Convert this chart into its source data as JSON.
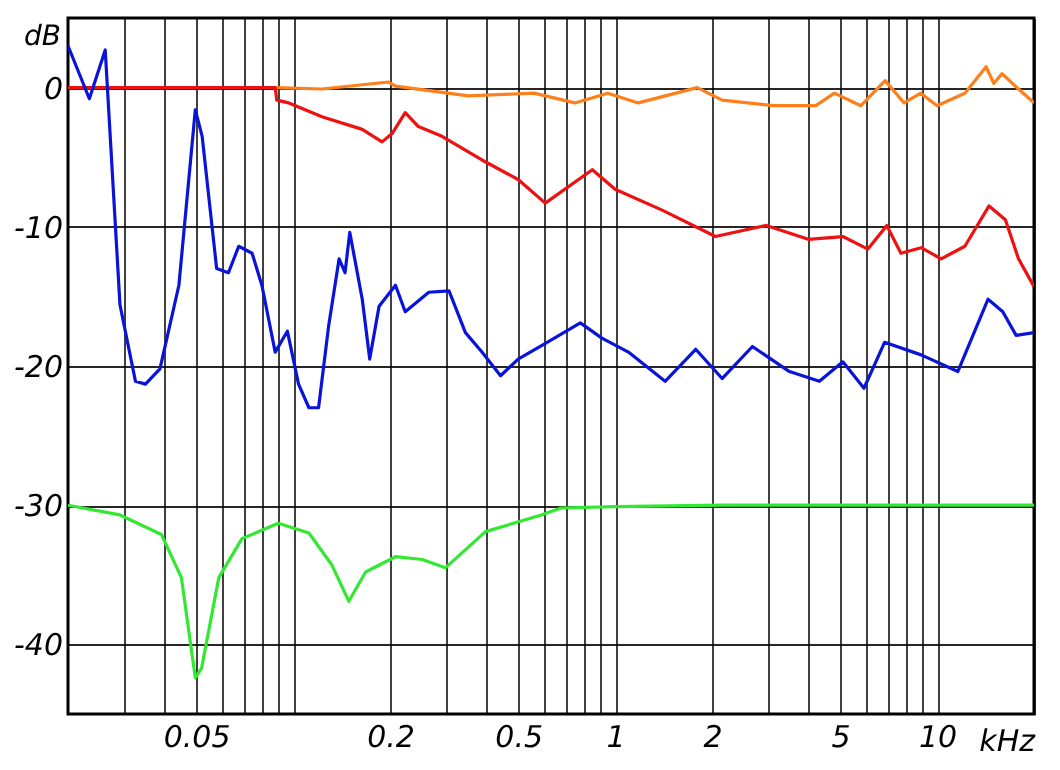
{
  "chart_data": {
    "type": "line",
    "xlabel": "kHz",
    "ylabel": "dB",
    "log": "x",
    "grid": true,
    "legend": false,
    "xlim": [
      0.02,
      20
    ],
    "ylim": [
      -45,
      5
    ],
    "xticks": [
      {
        "value": 0.03,
        "label": null
      },
      {
        "value": 0.04,
        "label": null
      },
      0.05,
      {
        "value": 0.06,
        "label": null
      },
      {
        "value": 0.07,
        "label": null
      },
      {
        "value": 0.08,
        "label": null
      },
      {
        "value": 0.09,
        "label": null
      },
      {
        "value": 0.1,
        "label": null
      },
      0.2,
      {
        "value": 0.3,
        "label": null
      },
      {
        "value": 0.4,
        "label": null
      },
      0.5,
      {
        "value": 0.6,
        "label": null
      },
      {
        "value": 0.7,
        "label": null
      },
      {
        "value": 0.8,
        "label": null
      },
      {
        "value": 0.9,
        "label": null
      },
      1,
      2,
      {
        "value": 3,
        "label": null
      },
      {
        "value": 4,
        "label": null
      },
      5,
      {
        "value": 6,
        "label": null
      },
      {
        "value": 7,
        "label": null
      },
      {
        "value": 8,
        "label": null
      },
      {
        "value": 9,
        "label": null
      },
      10,
      {
        "value": 20,
        "label": null
      }
    ],
    "yticks": [
      -40,
      -30,
      -20,
      -10,
      0
    ],
    "series": [
      {
        "color": "#ff7f1a",
        "x": [
          0.088,
          0.123,
          0.198,
          0.208,
          0.35,
          0.56,
          0.75,
          0.95,
          1.18,
          1.8,
          2.15,
          3.1,
          4.2,
          4.8,
          5.8,
          6.9,
          7.9,
          8.9,
          10,
          12.2,
          14.2,
          15,
          15.9,
          17.9,
          20
        ],
        "values": [
          0,
          -0.1,
          0.4,
          0.1,
          -0.6,
          -0.4,
          -1.1,
          -0.4,
          -1.1,
          0,
          -0.9,
          -1.3,
          -1.3,
          -0.4,
          -1.3,
          0.5,
          -1.1,
          -0.4,
          -1.3,
          -0.4,
          1.5,
          0.3,
          1.0,
          -0.1,
          -1.1
        ]
      },
      {
        "color": "#ee1111",
        "x": [
          0.02,
          0.088,
          0.089,
          0.097,
          0.123,
          0.164,
          0.189,
          0.203,
          0.223,
          0.245,
          0.29,
          0.386,
          0.5,
          0.607,
          0.85,
          1.0,
          1.4,
          2.05,
          2.95,
          3.98,
          5.1,
          6.1,
          6.98,
          7.72,
          8.92,
          10.3,
          12.2,
          14.5,
          16.3,
          17.9,
          20
        ],
        "values": [
          0,
          0,
          -0.9,
          -1.1,
          -2.1,
          -3.0,
          -3.9,
          -3.3,
          -1.8,
          -2.8,
          -3.5,
          -5.2,
          -6.6,
          -8.3,
          -5.9,
          -7.3,
          -8.8,
          -10.7,
          -9.9,
          -10.9,
          -10.7,
          -11.6,
          -9.9,
          -11.9,
          -11.5,
          -12.3,
          -11.4,
          -8.5,
          -9.5,
          -12.3,
          -14.3
        ]
      },
      {
        "color": "#0a14d8",
        "x": [
          0.02,
          0.0233,
          0.0261,
          0.029,
          0.0324,
          0.0348,
          0.0386,
          0.0442,
          0.0497,
          0.0522,
          0.0579,
          0.063,
          0.0678,
          0.0746,
          0.08,
          0.088,
          0.096,
          0.104,
          0.112,
          0.12,
          0.129,
          0.139,
          0.145,
          0.15,
          0.164,
          0.173,
          0.185,
          0.208,
          0.223,
          0.264,
          0.305,
          0.343,
          0.386,
          0.441,
          0.5,
          0.595,
          0.78,
          0.91,
          1.1,
          1.43,
          1.78,
          2.15,
          2.67,
          3.48,
          4.31,
          5.1,
          5.93,
          6.87,
          8.92,
          11.6,
          14.4,
          16,
          17.6,
          20
        ],
        "values": [
          3.0,
          -0.8,
          2.7,
          -15.6,
          -21.1,
          -21.3,
          -20.2,
          -14.2,
          -1.6,
          -3.5,
          -13,
          -13.3,
          -11.4,
          -11.9,
          -14.2,
          -19,
          -17.5,
          -21.3,
          -23,
          -23,
          -17.1,
          -12.3,
          -13.3,
          -10.4,
          -15.2,
          -19.5,
          -15.7,
          -14.2,
          -16.1,
          -14.7,
          -14.6,
          -17.6,
          -19,
          -20.7,
          -19.5,
          -18.5,
          -16.9,
          -18,
          -19,
          -21.1,
          -18.8,
          -20.9,
          -18.6,
          -20.4,
          -21.1,
          -19.7,
          -21.6,
          -18.3,
          -19.2,
          -20.4,
          -15.2,
          -16.1,
          -17.8,
          -17.6
        ]
      },
      {
        "color": "#33e833",
        "x": [
          0.02,
          0.029,
          0.039,
          0.045,
          0.0497,
          0.052,
          0.0588,
          0.0694,
          0.09,
          0.112,
          0.132,
          0.149,
          0.168,
          0.208,
          0.252,
          0.297,
          0.396,
          0.59,
          0.68,
          1.0,
          2.15,
          20
        ],
        "values": [
          -30,
          -30.7,
          -32.1,
          -35.2,
          -42.4,
          -41.7,
          -35.2,
          -32.4,
          -31.3,
          -32,
          -34.3,
          -36.9,
          -34.8,
          -33.7,
          -33.9,
          -34.5,
          -31.9,
          -30.7,
          -30.2,
          -30.1,
          -30,
          -30
        ]
      }
    ]
  }
}
